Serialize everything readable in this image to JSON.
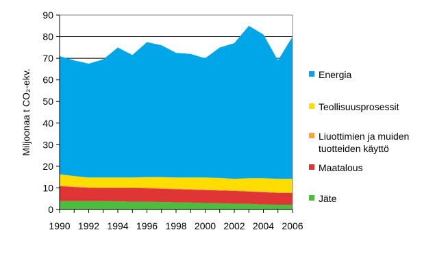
{
  "chart_data": {
    "type": "area",
    "stacked": true,
    "title": "",
    "xlabel": "",
    "ylabel": "Miljoonaa t CO₂-ekv.",
    "ylim": [
      0,
      90
    ],
    "yticks": [
      0,
      10,
      20,
      30,
      40,
      50,
      60,
      70,
      80,
      90
    ],
    "xticks": [
      1990,
      1992,
      1994,
      1996,
      1998,
      2000,
      2002,
      2004,
      2006
    ],
    "grid": true,
    "legend_position": "right",
    "x": [
      1990,
      1991,
      1992,
      1993,
      1994,
      1995,
      1996,
      1997,
      1998,
      1999,
      2000,
      2001,
      2002,
      2003,
      2004,
      2005,
      2006
    ],
    "series": [
      {
        "name": "Jäte",
        "color": "#4dbd40",
        "values": [
          3.9,
          3.9,
          3.9,
          3.9,
          3.8,
          3.6,
          3.6,
          3.5,
          3.3,
          3.2,
          3.0,
          2.9,
          2.7,
          2.6,
          2.3,
          2.2,
          2.2
        ]
      },
      {
        "name": "Maatalous",
        "color": "#e03535",
        "values": [
          6.9,
          6.5,
          6.1,
          6.0,
          6.1,
          6.3,
          6.2,
          6.1,
          6.1,
          6.0,
          6.0,
          5.9,
          5.9,
          5.7,
          5.7,
          5.5,
          5.4
        ]
      },
      {
        "name": "Liuottimien ja muiden tuotteiden käyttö",
        "color": "#f7a23a",
        "values": [
          0.3,
          0.3,
          0.3,
          0.3,
          0.3,
          0.3,
          0.3,
          0.3,
          0.3,
          0.3,
          0.3,
          0.3,
          0.3,
          0.3,
          0.3,
          0.3,
          0.3
        ]
      },
      {
        "name": "Teollisuusprosessit",
        "color": "#ffdd00",
        "values": [
          5.2,
          4.8,
          4.5,
          4.6,
          4.6,
          4.6,
          4.9,
          5.1,
          5.1,
          5.3,
          5.5,
          5.5,
          5.3,
          5.9,
          6.2,
          6.2,
          6.3
        ]
      },
      {
        "name": "Energia",
        "color": "#00a6e8",
        "values": [
          54.7,
          53.5,
          52.7,
          54.7,
          60.2,
          56.7,
          62.5,
          61.0,
          57.7,
          57.2,
          55.2,
          60.4,
          62.8,
          70.5,
          66.5,
          54.8,
          65.8
        ]
      }
    ],
    "legend": [
      {
        "label_lines": [
          "Energia"
        ],
        "color": "#00a6e8"
      },
      {
        "label_lines": [
          "Teollisuusprosessit"
        ],
        "color": "#ffdd00"
      },
      {
        "label_lines": [
          "Liuottimien ja muiden",
          "tuotteiden käyttö"
        ],
        "color": "#f7a23a"
      },
      {
        "label_lines": [
          "Maatalous"
        ],
        "color": "#e03535"
      },
      {
        "label_lines": [
          "Jäte"
        ],
        "color": "#4dbd40"
      }
    ]
  }
}
